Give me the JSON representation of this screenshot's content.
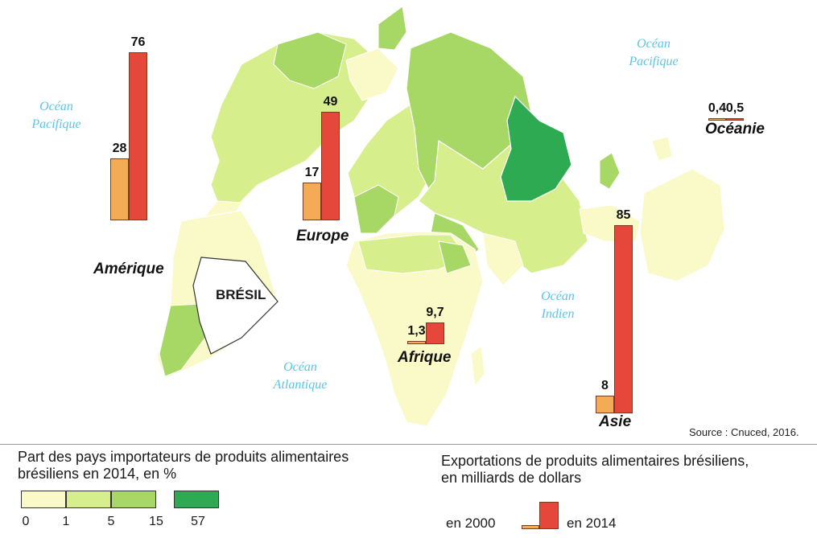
{
  "map": {
    "ocean_labels": [
      {
        "id": "pacific-west",
        "line1": "Océan",
        "line2": "Pacifique"
      },
      {
        "id": "pacific-east",
        "line1": "Océan",
        "line2": "Pacifique"
      },
      {
        "id": "atlantic",
        "line1": "Océan",
        "line2": "Atlantique"
      },
      {
        "id": "indian",
        "line1": "Océan",
        "line2": "Indien"
      }
    ],
    "brazil_label": "BRÉSIL",
    "source": "Source : Cnuced, 2016.",
    "colors": {
      "ocean": "#ffffff",
      "land_class_1": "#fafac8",
      "land_class_2": "#d6ef8c",
      "land_class_3": "#a7d764",
      "land_class_4": "#2eaa52",
      "bar_2000": "#f4ab55",
      "bar_2014": "#e5473b"
    }
  },
  "exports": {
    "unit": "milliards de dollars",
    "regions": [
      {
        "name": "Amérique",
        "value_2000": "28",
        "value_2014": "76",
        "v2000": 28,
        "v2014": 76
      },
      {
        "name": "Europe",
        "value_2000": "17",
        "value_2014": "49",
        "v2000": 17,
        "v2014": 49
      },
      {
        "name": "Afrique",
        "value_2000": "1,3",
        "value_2014": "9,7",
        "v2000": 1.3,
        "v2014": 9.7
      },
      {
        "name": "Asie",
        "value_2000": "8",
        "value_2014": "85",
        "v2000": 8,
        "v2014": 85
      },
      {
        "name": "Océanie",
        "value_2000": "0,4",
        "value_2014": "0,5",
        "v2000": 0.4,
        "v2014": 0.5
      }
    ]
  },
  "legend": {
    "choropleth_title_line1": "Part des pays importateurs de produits alimentaires",
    "choropleth_title_line2": "brésiliens en 2014, en %",
    "class_breaks": [
      "0",
      "1",
      "5",
      "15",
      "57"
    ],
    "bars_title_line1": "Exportations de produits alimentaires brésiliens,",
    "bars_title_line2": "en milliards de dollars",
    "bar_label_2000": "en 2000",
    "bar_label_2014": "en 2014"
  }
}
